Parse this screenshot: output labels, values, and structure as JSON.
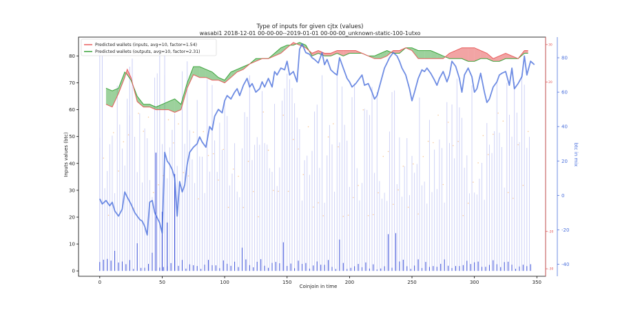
{
  "chart_data": {
    "type": "line",
    "title": "Type of inputs for given cjtx (values)",
    "subtitle": "wasabi1 2018-12-01 00-00-00--2019-01-01 00-00-00_unknown-static-100-1utxo",
    "xlabel": "Coinjoin in time",
    "ylabel": "Inputs values (btc)",
    "y2label": "btc in mix",
    "xlim": [
      -17,
      357
    ],
    "ylim": [
      -2,
      87
    ],
    "y2lim": [
      -47,
      92
    ],
    "y3lim": [
      -32,
      32
    ],
    "x_ticks": [
      0,
      50,
      100,
      150,
      200,
      250,
      300,
      350
    ],
    "y_ticks": [
      0,
      10,
      20,
      30,
      40,
      50,
      60,
      70,
      80
    ],
    "y2_ticks": [
      -40,
      -20,
      0,
      20,
      40,
      60,
      80
    ],
    "y3_ticks": [
      -30,
      -20,
      20,
      30
    ],
    "legend": {
      "position": "top-left",
      "entries": [
        {
          "label": "Predicted wallets (inputs, avg=10, factor=1.54)",
          "color": "#e85a5a"
        },
        {
          "label": "Predicted wallets (outputs, avg=10, factor=2.31)",
          "color": "#3aa33a"
        }
      ]
    },
    "series": [
      {
        "name": "Predicted wallets (inputs, avg=10, factor=1.54)",
        "color": "#e85a5a",
        "x": [
          5,
          10,
          15,
          20,
          22,
          25,
          30,
          35,
          40,
          45,
          50,
          55,
          60,
          65,
          70,
          75,
          80,
          85,
          90,
          95,
          100,
          105,
          110,
          115,
          120,
          125,
          130,
          135,
          140,
          145,
          150,
          155,
          160,
          165,
          170,
          175,
          180,
          185,
          190,
          195,
          200,
          205,
          210,
          215,
          220,
          225,
          230,
          235,
          240,
          245,
          250,
          255,
          260,
          265,
          270,
          275,
          280,
          285,
          290,
          295,
          300,
          305,
          310,
          315,
          320,
          325,
          330,
          335,
          340,
          343
        ],
        "values": [
          62,
          61,
          66,
          72,
          75,
          72,
          63,
          61,
          61,
          60,
          60,
          60,
          59,
          60,
          68,
          73,
          72,
          72,
          71,
          71,
          70,
          72,
          74,
          75,
          77,
          78,
          79,
          79,
          80,
          81,
          83,
          85,
          84,
          83,
          81,
          82,
          81,
          81,
          82,
          82,
          82,
          82,
          81,
          80,
          79,
          79,
          80,
          82,
          82,
          83,
          82,
          79,
          79,
          79,
          79,
          79,
          81,
          82,
          83,
          83,
          83,
          82,
          81,
          79,
          80,
          81,
          80,
          79,
          82,
          82
        ]
      },
      {
        "name": "Predicted wallets (outputs, avg=10, factor=2.31)",
        "color": "#3aa33a",
        "x": [
          5,
          10,
          15,
          20,
          22,
          25,
          30,
          35,
          40,
          45,
          50,
          55,
          60,
          65,
          70,
          75,
          80,
          85,
          90,
          95,
          100,
          105,
          110,
          115,
          120,
          125,
          130,
          135,
          140,
          145,
          150,
          155,
          160,
          165,
          170,
          175,
          180,
          185,
          190,
          195,
          200,
          205,
          210,
          215,
          220,
          225,
          230,
          235,
          240,
          245,
          250,
          255,
          260,
          265,
          270,
          275,
          280,
          285,
          290,
          295,
          300,
          305,
          310,
          315,
          320,
          325,
          330,
          335,
          340,
          343
        ],
        "values": [
          68,
          67,
          68,
          74,
          73,
          71,
          65,
          62,
          62,
          61,
          62,
          63,
          64,
          62,
          70,
          76,
          76,
          75,
          74,
          72,
          71,
          74,
          75,
          76,
          77,
          79,
          79,
          79,
          81,
          83,
          84,
          84,
          85,
          84,
          80,
          81,
          80,
          80,
          81,
          80,
          81,
          81,
          81,
          80,
          80,
          81,
          82,
          81,
          81,
          83,
          83,
          82,
          82,
          82,
          81,
          80,
          79,
          79,
          79,
          78,
          78,
          79,
          79,
          78,
          78,
          79,
          79,
          79,
          81,
          81
        ]
      },
      {
        "name": "",
        "axis": "right",
        "color": "#4a6fdc",
        "x": [
          0,
          2,
          5,
          8,
          10,
          12,
          15,
          18,
          20,
          22,
          25,
          28,
          30,
          32,
          34,
          36,
          38,
          40,
          42,
          44,
          46,
          48,
          50,
          52,
          54,
          56,
          58,
          60,
          62,
          64,
          66,
          68,
          70,
          72,
          75,
          78,
          80,
          82,
          85,
          88,
          90,
          92,
          95,
          98,
          100,
          102,
          105,
          108,
          110,
          112,
          115,
          118,
          120,
          122,
          125,
          128,
          130,
          132,
          135,
          138,
          140,
          142,
          145,
          148,
          150,
          152,
          155,
          158,
          160,
          162,
          165,
          168,
          170,
          172,
          175,
          178,
          180,
          182,
          185,
          188,
          190,
          192,
          195,
          198,
          200,
          202,
          205,
          208,
          210,
          212,
          215,
          218,
          220,
          222,
          225,
          228,
          230,
          232,
          235,
          238,
          240,
          242,
          245,
          248,
          250,
          252,
          255,
          258,
          260,
          262,
          265,
          268,
          270,
          272,
          275,
          278,
          280,
          282,
          285,
          288,
          290,
          292,
          295,
          298,
          300,
          302,
          305,
          308,
          310,
          312,
          315,
          318,
          320,
          322,
          325,
          328,
          330,
          332,
          335,
          338,
          340,
          342,
          345,
          348
        ],
        "values": [
          -2,
          -5,
          -3,
          -6,
          -4,
          -9,
          -12,
          -8,
          2,
          -1,
          -5,
          -10,
          -12,
          -14,
          -15,
          -18,
          -23,
          -4,
          -3,
          -10,
          -13,
          -16,
          -22,
          25,
          20,
          18,
          15,
          10,
          -12,
          8,
          2,
          6,
          18,
          25,
          28,
          30,
          34,
          31,
          28,
          40,
          38,
          46,
          50,
          48,
          55,
          58,
          56,
          60,
          62,
          58,
          64,
          68,
          63,
          65,
          60,
          62,
          66,
          63,
          68,
          63,
          72,
          70,
          74,
          73,
          78,
          70,
          72,
          66,
          85,
          88,
          83,
          82,
          80,
          79,
          77,
          83,
          76,
          79,
          73,
          71,
          70,
          80,
          74,
          68,
          66,
          63,
          65,
          68,
          70,
          64,
          65,
          60,
          56,
          58,
          66,
          74,
          77,
          80,
          83,
          81,
          78,
          74,
          70,
          62,
          55,
          60,
          68,
          73,
          72,
          74,
          71,
          67,
          64,
          68,
          72,
          66,
          70,
          78,
          75,
          68,
          60,
          70,
          74,
          69,
          60,
          62,
          71,
          60,
          54,
          56,
          63,
          66,
          70,
          71,
          72,
          64,
          74,
          62,
          65,
          69,
          81,
          70,
          78,
          76
        ]
      }
    ]
  }
}
